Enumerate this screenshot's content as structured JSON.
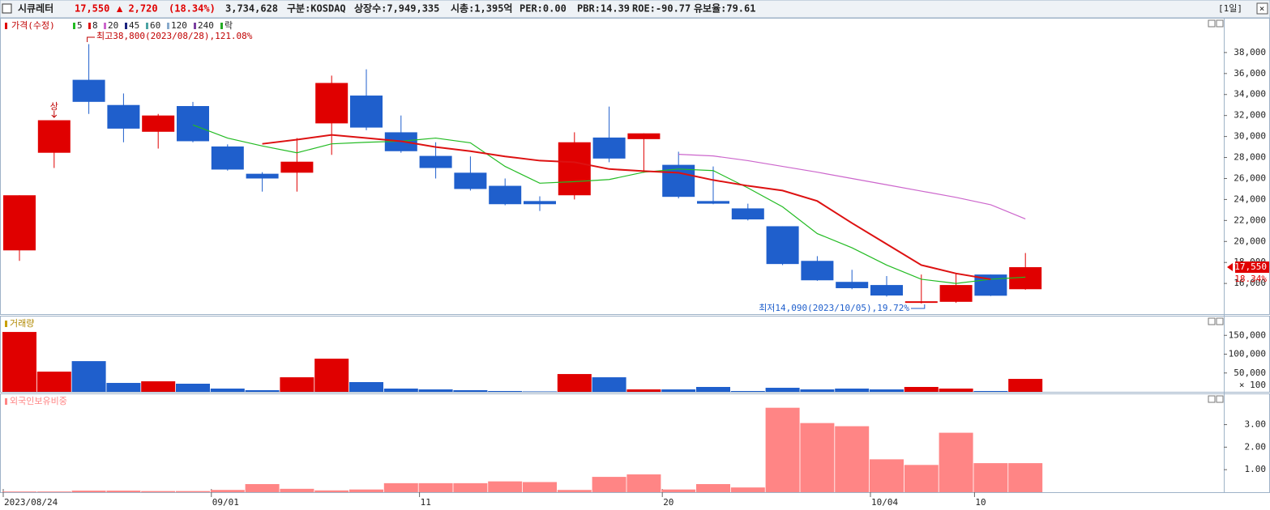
{
  "header": {
    "name": "시큐레터",
    "price": "17,550",
    "change": "▲ 2,720",
    "change_pct": "(18.34%)",
    "volume": "3,734,628",
    "market": "구분:KOSDAQ",
    "shares": "상장수:7,949,335",
    "cap": "시총:1,395억",
    "per": "PER:0.00",
    "pbr": "PBR:14.39",
    "roe": "ROE:-90.77",
    "reserve": "유보율:79.61",
    "period": "[1일]"
  },
  "chart_data": [
    {
      "type": "candlestick",
      "legend_title": "가격(수정)",
      "up_color": "#e00000",
      "down_color": "#1f5fcc",
      "categories": [
        "2023/08/24",
        null,
        null,
        null,
        null,
        null,
        "09/01",
        null,
        null,
        null,
        null,
        null,
        "11",
        null,
        null,
        null,
        null,
        null,
        null,
        "20",
        null,
        null,
        null,
        null,
        null,
        "10/04",
        null,
        null,
        "10",
        null
      ],
      "open": [
        19150,
        28450,
        35400,
        33000,
        30450,
        32900,
        29050,
        26450,
        26550,
        31250,
        33900,
        30400,
        28150,
        26550,
        25300,
        23850,
        24400,
        29900,
        29750,
        27300,
        23850,
        23150,
        21450,
        18150,
        16150,
        15850,
        14150,
        14250,
        16850,
        15450
      ],
      "high": [
        24400,
        31550,
        38800,
        34100,
        32150,
        33300,
        29250,
        26600,
        29850,
        35800,
        36400,
        32000,
        29450,
        28100,
        26000,
        24300,
        30400,
        32850,
        30300,
        28550,
        27150,
        23600,
        21450,
        18600,
        17300,
        16700,
        16850,
        16900,
        16850,
        18900
      ],
      "low": [
        18150,
        27000,
        32150,
        29450,
        28850,
        29450,
        26750,
        24750,
        24750,
        28250,
        30600,
        28450,
        26000,
        24850,
        23450,
        22900,
        24000,
        27550,
        26550,
        24100,
        23550,
        22000,
        17750,
        16250,
        15450,
        14750,
        14090,
        14150,
        14800,
        15400
      ],
      "close": [
        24400,
        31550,
        33300,
        30750,
        32000,
        29550,
        26850,
        26000,
        27600,
        35100,
        30850,
        28600,
        27000,
        25000,
        23550,
        23550,
        29450,
        27900,
        30300,
        24250,
        23600,
        22100,
        17850,
        16300,
        15550,
        14850,
        14300,
        15850,
        14830,
        17550
      ],
      "series": [
        {
          "name": "5",
          "color": "#22bb22",
          "values": [
            null,
            null,
            null,
            null,
            null,
            31100,
            29850,
            29100,
            28450,
            29300,
            29450,
            29550,
            29850,
            29400,
            27150,
            25550,
            25700,
            25900,
            26600,
            26900,
            26750,
            25100,
            23300,
            20750,
            19400,
            17750,
            16400,
            16000,
            16400,
            16600
          ]
        },
        {
          "name": "8",
          "color": "#dd1111",
          "values": [
            null,
            null,
            null,
            null,
            null,
            null,
            null,
            29300,
            29700,
            30150,
            29850,
            29550,
            29000,
            28600,
            28100,
            27700,
            27550,
            26900,
            26700,
            26550,
            25850,
            25300,
            24850,
            23850,
            21750,
            19750,
            17750,
            16950,
            16400,
            null
          ]
        },
        {
          "name": "20",
          "color": "#cc66cc",
          "values": [
            null,
            null,
            null,
            null,
            null,
            null,
            null,
            null,
            null,
            null,
            null,
            null,
            null,
            null,
            null,
            null,
            null,
            null,
            null,
            28300,
            28150,
            27700,
            27150,
            26600,
            26000,
            25400,
            24800,
            24200,
            23500,
            22150
          ]
        }
      ],
      "legend_extra": [
        {
          "name": "45",
          "color": "#1a237e"
        },
        {
          "name": "60",
          "color": "#4aa3a3"
        },
        {
          "name": "120",
          "color": "#88aacc"
        },
        {
          "name": "240",
          "color": "#7b3fa0"
        },
        {
          "name": "락",
          "color": "#22aa22"
        }
      ],
      "annotations": {
        "limit_up": "상",
        "high": "최고38,800(2023/08/28),121.08%",
        "low": "최저14,090(2023/10/05),19.72%"
      },
      "last_price": {
        "value": 17550,
        "label": "17,550",
        "pct": "18.34%"
      },
      "ylim": [
        13080,
        41230
      ],
      "yticks": [
        {
          "value": 16000,
          "label": "16,000"
        },
        {
          "value": 18000,
          "label": "18,000"
        },
        {
          "value": 20000,
          "label": "20,000"
        },
        {
          "value": 22000,
          "label": "22,000"
        },
        {
          "value": 24000,
          "label": "24,000"
        },
        {
          "value": 26000,
          "label": "26,000"
        },
        {
          "value": 28000,
          "label": "28,000"
        },
        {
          "value": 30000,
          "label": "30,000"
        },
        {
          "value": 32000,
          "label": "32,000"
        },
        {
          "value": 34000,
          "label": "34,000"
        },
        {
          "value": 36000,
          "label": "36,000"
        },
        {
          "value": 38000,
          "label": "38,000"
        }
      ]
    },
    {
      "type": "bar",
      "title": "거래량",
      "unit": "× 100",
      "values": [
        159000,
        53600,
        81500,
        23600,
        27900,
        21500,
        8600,
        4300,
        38600,
        88000,
        25800,
        8600,
        6400,
        4300,
        2100,
        1000,
        47200,
        38600,
        6400,
        6400,
        12900,
        2100,
        10700,
        6400,
        8600,
        6400,
        12900,
        8600,
        2100,
        34300
      ],
      "ylim": [
        0,
        200000
      ],
      "yticks": [
        {
          "value": 50000,
          "label": "50,000"
        },
        {
          "value": 100000,
          "label": "100,000"
        },
        {
          "value": 150000,
          "label": "150,000"
        }
      ]
    },
    {
      "type": "bar",
      "title": "외국인보유비중",
      "color": "#ff8585",
      "values": [
        0.03,
        0.03,
        0.07,
        0.07,
        0.05,
        0.05,
        0.1,
        0.36,
        0.15,
        0.08,
        0.12,
        0.4,
        0.4,
        0.4,
        0.48,
        0.45,
        0.1,
        0.68,
        0.79,
        0.12,
        0.36,
        0.21,
        3.75,
        3.07,
        2.93,
        1.46,
        1.21,
        2.64,
        1.29,
        1.29
      ],
      "ylim": [
        0,
        4.35
      ],
      "yticks": [
        {
          "value": 1,
          "label": "1.00"
        },
        {
          "value": 2,
          "label": "2.00"
        },
        {
          "value": 3,
          "label": "3.00"
        }
      ]
    }
  ]
}
